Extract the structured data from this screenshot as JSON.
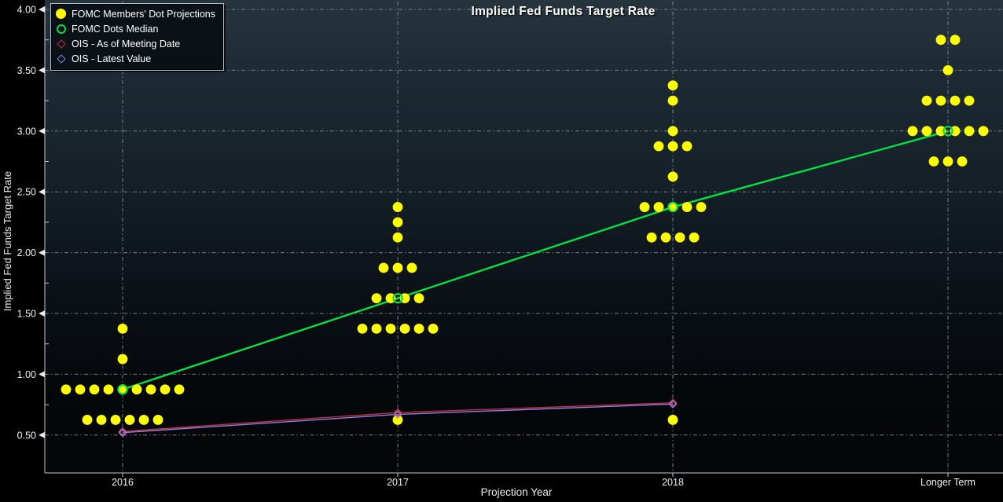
{
  "chart": {
    "title": "Implied Fed Funds Target Rate",
    "xlabel": "Projection Year",
    "ylabel": "Implied Fed Funds Target Rate"
  },
  "legend": {
    "position": "top-left",
    "items": [
      {
        "symbol": "filled-circle",
        "color": "#ffff00",
        "label": "FOMC Members' Dot Projections"
      },
      {
        "symbol": "open-circle",
        "color": "#00e044",
        "label": "FOMC Dots Median"
      },
      {
        "symbol": "open-diamond",
        "color": "#c03040",
        "label": "OIS - As of Meeting Date"
      },
      {
        "symbol": "open-diamond",
        "color": "#8f82e0",
        "label": "OIS - Latest Value"
      }
    ]
  },
  "chart_data": {
    "type": "scatter",
    "title": "Implied Fed Funds Target Rate",
    "xlabel": "Projection Year",
    "ylabel": "Implied Fed Funds Target Rate",
    "categories": [
      "2016",
      "2017",
      "2018",
      "Longer Term"
    ],
    "ylim": [
      0,
      4.0
    ],
    "y_ticks": [
      0.5,
      1.0,
      1.5,
      2.0,
      2.5,
      3.0,
      3.5,
      4.0
    ],
    "y_minor_tick_step": 0.25,
    "grid": "dash-dot horizontal line at each 0.50 tick; dash-dot vertical line at each category",
    "legend_position": "top-left",
    "series": [
      {
        "id": "dots",
        "name": "FOMC Members' Dot Projections",
        "marker": "filled-circle",
        "color": "#ffff00",
        "groups": [
          {
            "category": "2016",
            "points": [
              {
                "rate": 1.375,
                "count": 1
              },
              {
                "rate": 1.125,
                "count": 1
              },
              {
                "rate": 0.875,
                "count": 9
              },
              {
                "rate": 0.625,
                "count": 6
              }
            ]
          },
          {
            "category": "2017",
            "points": [
              {
                "rate": 2.375,
                "count": 1
              },
              {
                "rate": 2.25,
                "count": 1
              },
              {
                "rate": 2.125,
                "count": 1
              },
              {
                "rate": 1.875,
                "count": 3
              },
              {
                "rate": 1.625,
                "count": 4
              },
              {
                "rate": 1.375,
                "count": 6
              },
              {
                "rate": 0.625,
                "count": 1
              }
            ]
          },
          {
            "category": "2018",
            "points": [
              {
                "rate": 3.375,
                "count": 1
              },
              {
                "rate": 3.25,
                "count": 1
              },
              {
                "rate": 3.0,
                "count": 1
              },
              {
                "rate": 2.875,
                "count": 3
              },
              {
                "rate": 2.625,
                "count": 1
              },
              {
                "rate": 2.375,
                "count": 5
              },
              {
                "rate": 2.125,
                "count": 4
              },
              {
                "rate": 0.625,
                "count": 1
              }
            ]
          },
          {
            "category": "Longer Term",
            "points": [
              {
                "rate": 3.75,
                "count": 2
              },
              {
                "rate": 3.5,
                "count": 1
              },
              {
                "rate": 3.25,
                "count": 4
              },
              {
                "rate": 3.0,
                "count": 6
              },
              {
                "rate": 2.75,
                "count": 3
              }
            ]
          }
        ]
      },
      {
        "id": "median",
        "name": "FOMC Dots Median",
        "marker": "open-circle",
        "color": "#00e044",
        "line": true,
        "values": [
          0.875,
          1.625,
          2.375,
          3.0
        ]
      },
      {
        "id": "ois_meeting",
        "name": "OIS - As of Meeting Date",
        "marker": "open-diamond",
        "color": "#c03040",
        "line": true,
        "values": [
          0.53,
          0.685,
          0.765,
          null
        ]
      },
      {
        "id": "ois_latest",
        "name": "OIS - Latest Value",
        "marker": "open-diamond",
        "color": "#8f82e0",
        "line": true,
        "values": [
          0.52,
          0.67,
          0.755,
          null
        ]
      }
    ]
  }
}
